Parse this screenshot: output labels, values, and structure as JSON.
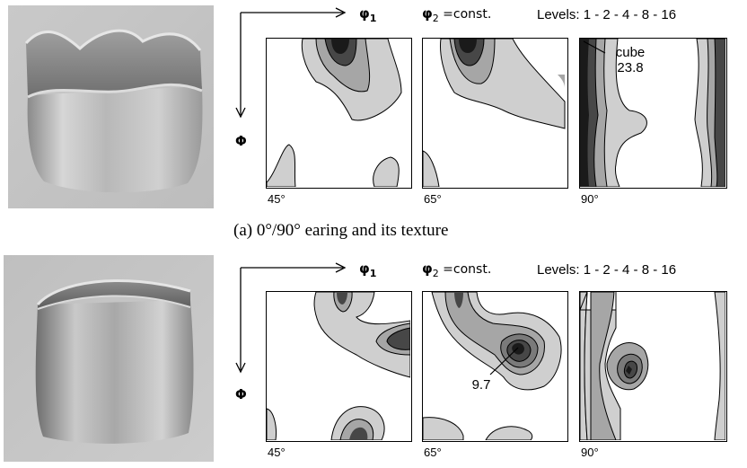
{
  "figure": {
    "axis_labels": {
      "phi1_base": "φ",
      "phi1_sub": "1",
      "phi2_base": "φ",
      "phi2_sub": "2",
      "phi2_suffix": " =const.",
      "Phi": "Φ"
    },
    "rows": [
      {
        "levels": "Levels: 1 - 2 - 4 - 8 - 16",
        "angles": [
          "45°",
          "65°",
          "90°"
        ],
        "annotation_label": "cube",
        "annotation_value": "23.8",
        "caption": "(a) 0°/90° earing and its texture"
      },
      {
        "levels": "Levels: 1 - 2 - 4 - 8 - 16",
        "angles": [
          "45°",
          "65°",
          "90°"
        ],
        "annotation_value": "9.7"
      }
    ],
    "contour_colors": [
      "#ffffff",
      "#cfcfcf",
      "#a6a6a6",
      "#7a7a7a",
      "#474747",
      "#1a1a1a"
    ]
  }
}
